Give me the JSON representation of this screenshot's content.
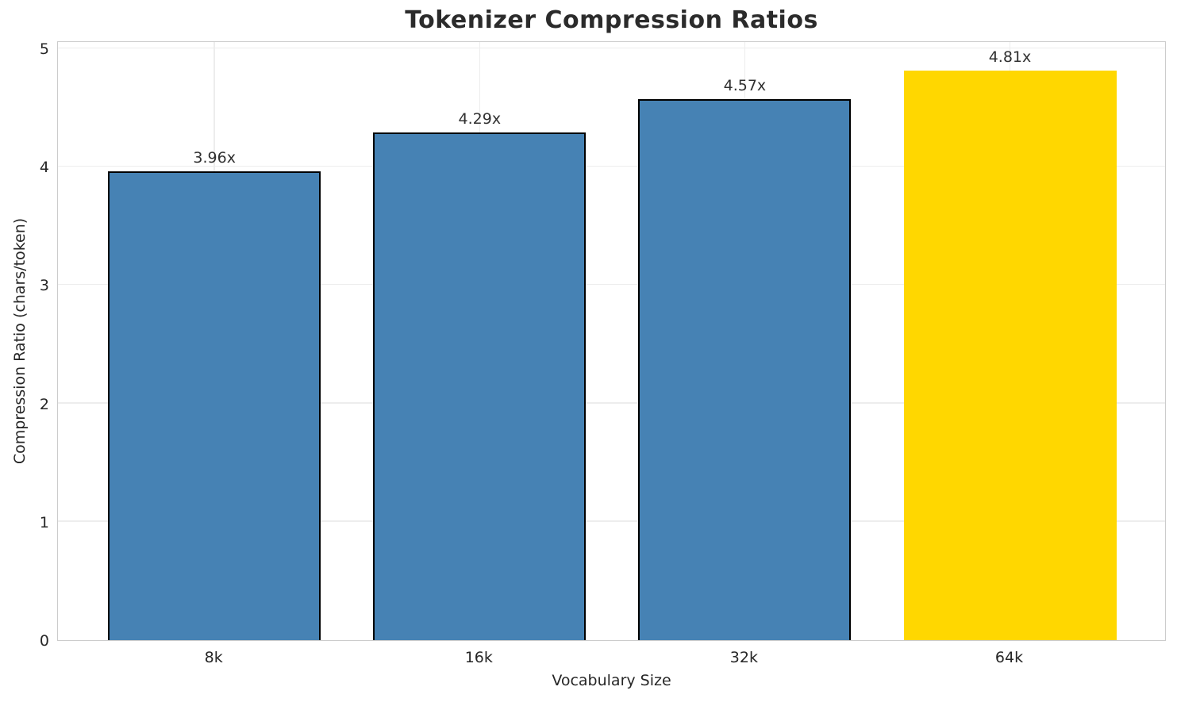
{
  "chart_data": {
    "type": "bar",
    "title": "Tokenizer Compression Ratios",
    "xlabel": "Vocabulary Size",
    "ylabel": "Compression Ratio (chars/token)",
    "categories": [
      "8k",
      "16k",
      "32k",
      "64k"
    ],
    "values": [
      3.96,
      4.29,
      4.57,
      4.81
    ],
    "bar_labels": [
      "3.96x",
      "4.29x",
      "4.57x",
      "4.81x"
    ],
    "bar_colors": [
      "#4682b4",
      "#4682b4",
      "#4682b4",
      "#ffd700"
    ],
    "bar_edge_colors": [
      "#000000",
      "#000000",
      "#000000",
      "none"
    ],
    "highlight_color": "#ffd700",
    "base_color": "#4682b4",
    "ylim": [
      0,
      5.06
    ],
    "yticks": [
      "0",
      "1",
      "2",
      "3",
      "4",
      "5"
    ],
    "grid": "on",
    "legend": "none"
  }
}
